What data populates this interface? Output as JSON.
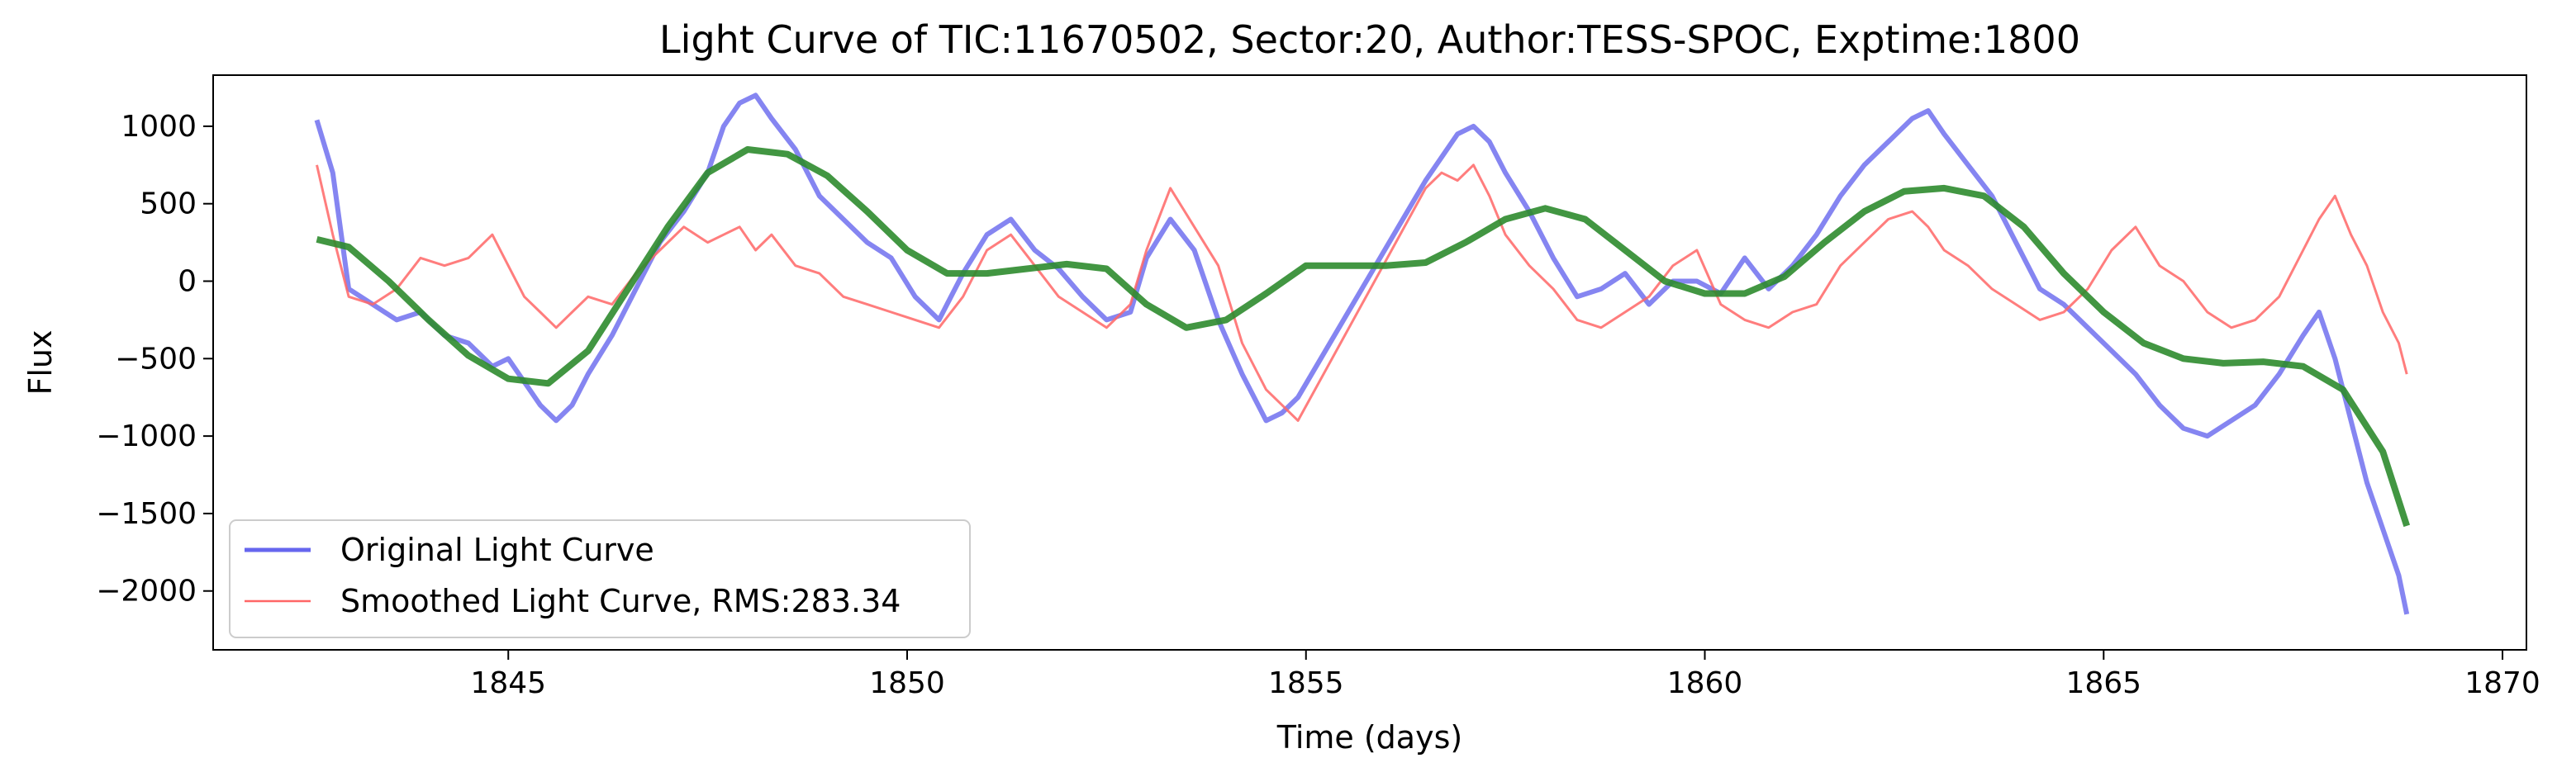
{
  "chart_data": {
    "type": "line",
    "title": "Light Curve of TIC:11670502, Sector:20, Author:TESS-SPOC, Exptime:1800",
    "xlabel": "Time (days)",
    "ylabel": "Flux",
    "xlim": [
      1841.3,
      1870.3
    ],
    "ylim": [
      -2380,
      1330
    ],
    "xticks": [
      1845,
      1850,
      1855,
      1860,
      1865,
      1870
    ],
    "yticks": [
      1000,
      500,
      0,
      -500,
      -1000,
      -1500,
      -2000
    ],
    "xtick_labels": [
      "1845",
      "1850",
      "1855",
      "1860",
      "1865",
      "1870"
    ],
    "ytick_labels": [
      "1000",
      "500",
      "0",
      "−500",
      "−1000",
      "−1500",
      "−2000"
    ],
    "grid": false,
    "legend_position": "lower-left",
    "series": [
      {
        "name": "Original Light Curve",
        "color": "#6666ee",
        "x": [
          1842.6,
          1842.8,
          1843.0,
          1843.3,
          1843.6,
          1843.9,
          1844.2,
          1844.5,
          1844.8,
          1845.0,
          1845.2,
          1845.4,
          1845.6,
          1845.8,
          1846.0,
          1846.3,
          1846.6,
          1846.9,
          1847.2,
          1847.5,
          1847.7,
          1847.9,
          1848.1,
          1848.3,
          1848.6,
          1848.9,
          1849.2,
          1849.5,
          1849.8,
          1850.1,
          1850.4,
          1850.7,
          1851.0,
          1851.3,
          1851.6,
          1851.9,
          1852.2,
          1852.5,
          1852.8,
          1853.0,
          1853.3,
          1853.6,
          1853.9,
          1854.2,
          1854.5,
          1854.7,
          1854.9,
          1856.5,
          1856.7,
          1856.9,
          1857.1,
          1857.3,
          1857.5,
          1857.8,
          1858.1,
          1858.4,
          1858.7,
          1859.0,
          1859.3,
          1859.6,
          1859.9,
          1860.2,
          1860.5,
          1860.8,
          1861.1,
          1861.4,
          1861.7,
          1862.0,
          1862.3,
          1862.6,
          1862.8,
          1863.0,
          1863.3,
          1863.6,
          1863.9,
          1864.2,
          1864.5,
          1864.8,
          1865.1,
          1865.4,
          1865.7,
          1866.0,
          1866.3,
          1866.6,
          1866.9,
          1867.2,
          1867.5,
          1867.7,
          1867.9,
          1868.1,
          1868.3,
          1868.5,
          1868.7,
          1868.8
        ],
        "y": [
          1040,
          700,
          -50,
          -150,
          -250,
          -200,
          -350,
          -400,
          -550,
          -500,
          -650,
          -800,
          -900,
          -800,
          -600,
          -350,
          -50,
          250,
          450,
          700,
          1000,
          1150,
          1200,
          1050,
          850,
          550,
          400,
          250,
          150,
          -100,
          -250,
          50,
          300,
          400,
          200,
          80,
          -100,
          -250,
          -200,
          150,
          400,
          200,
          -250,
          -600,
          -900,
          -850,
          -750,
          650,
          800,
          950,
          1000,
          900,
          700,
          450,
          150,
          -100,
          -50,
          50,
          -150,
          0,
          0,
          -80,
          150,
          -50,
          100,
          300,
          550,
          750,
          900,
          1050,
          1100,
          950,
          750,
          550,
          250,
          -50,
          -150,
          -300,
          -450,
          -600,
          -800,
          -950,
          -1000,
          -900,
          -800,
          -600,
          -350,
          -200,
          -500,
          -900,
          -1300,
          -1600,
          -1900,
          -2150
        ],
        "linewidth": 3
      },
      {
        "name": "Smoothed Light Curve, RMS:283.34",
        "color": "#ff6666",
        "x": [
          1842.6,
          1842.8,
          1843.0,
          1843.3,
          1843.6,
          1843.9,
          1844.2,
          1844.5,
          1844.8,
          1845.0,
          1845.2,
          1845.4,
          1845.6,
          1845.8,
          1846.0,
          1846.3,
          1846.6,
          1846.9,
          1847.2,
          1847.5,
          1847.7,
          1847.9,
          1848.1,
          1848.3,
          1848.6,
          1848.9,
          1849.2,
          1849.5,
          1849.8,
          1850.1,
          1850.4,
          1850.7,
          1851.0,
          1851.3,
          1851.6,
          1851.9,
          1852.2,
          1852.5,
          1852.8,
          1853.0,
          1853.3,
          1853.6,
          1853.9,
          1854.2,
          1854.5,
          1854.7,
          1854.9,
          1856.5,
          1856.7,
          1856.9,
          1857.1,
          1857.3,
          1857.5,
          1857.8,
          1858.1,
          1858.4,
          1858.7,
          1859.0,
          1859.3,
          1859.6,
          1859.9,
          1860.2,
          1860.5,
          1860.8,
          1861.1,
          1861.4,
          1861.7,
          1862.0,
          1862.3,
          1862.6,
          1862.8,
          1863.0,
          1863.3,
          1863.6,
          1863.9,
          1864.2,
          1864.5,
          1864.8,
          1865.1,
          1865.4,
          1865.7,
          1866.0,
          1866.3,
          1866.6,
          1866.9,
          1867.2,
          1867.5,
          1867.7,
          1867.9,
          1868.1,
          1868.3,
          1868.5,
          1868.7,
          1868.8
        ],
        "y": [
          750,
          300,
          -100,
          -150,
          -50,
          150,
          100,
          150,
          300,
          100,
          -100,
          -200,
          -300,
          -200,
          -100,
          -150,
          50,
          200,
          350,
          250,
          300,
          350,
          200,
          300,
          100,
          50,
          -100,
          -150,
          -200,
          -250,
          -300,
          -100,
          200,
          300,
          100,
          -100,
          -200,
          -300,
          -150,
          200,
          600,
          350,
          100,
          -400,
          -700,
          -800,
          -900,
          600,
          700,
          650,
          750,
          550,
          300,
          100,
          -50,
          -250,
          -300,
          -200,
          -100,
          100,
          200,
          -150,
          -250,
          -300,
          -200,
          -150,
          100,
          250,
          400,
          450,
          350,
          200,
          100,
          -50,
          -150,
          -250,
          -200,
          -50,
          200,
          350,
          100,
          0,
          -200,
          -300,
          -250,
          -100,
          200,
          400,
          550,
          300,
          100,
          -200,
          -400,
          -600
        ],
        "linewidth": 1.5
      },
      {
        "name": "",
        "color": "#2e8b2e",
        "x": [
          1842.6,
          1843.0,
          1843.5,
          1844.0,
          1844.5,
          1845.0,
          1845.5,
          1846.0,
          1846.5,
          1847.0,
          1847.5,
          1848.0,
          1848.5,
          1849.0,
          1849.5,
          1850.0,
          1850.5,
          1851.0,
          1851.5,
          1852.0,
          1852.5,
          1853.0,
          1853.5,
          1854.0,
          1854.5,
          1855.0,
          1855.5,
          1856.0,
          1856.5,
          1857.0,
          1857.5,
          1858.0,
          1858.5,
          1859.0,
          1859.5,
          1860.0,
          1860.5,
          1861.0,
          1861.5,
          1862.0,
          1862.5,
          1863.0,
          1863.5,
          1864.0,
          1864.5,
          1865.0,
          1865.5,
          1866.0,
          1866.5,
          1867.0,
          1867.5,
          1868.0,
          1868.5,
          1868.8
        ],
        "y": [
          270,
          220,
          0,
          -250,
          -480,
          -630,
          -660,
          -450,
          -50,
          350,
          700,
          850,
          820,
          680,
          450,
          200,
          50,
          50,
          80,
          110,
          80,
          -150,
          -300,
          -250,
          -80,
          100,
          100,
          100,
          120,
          250,
          400,
          470,
          400,
          200,
          0,
          -80,
          -80,
          30,
          250,
          450,
          580,
          600,
          550,
          350,
          50,
          -200,
          -400,
          -500,
          -530,
          -520,
          -550,
          -700,
          -1100,
          -1580
        ],
        "linewidth": 4
      }
    ]
  }
}
